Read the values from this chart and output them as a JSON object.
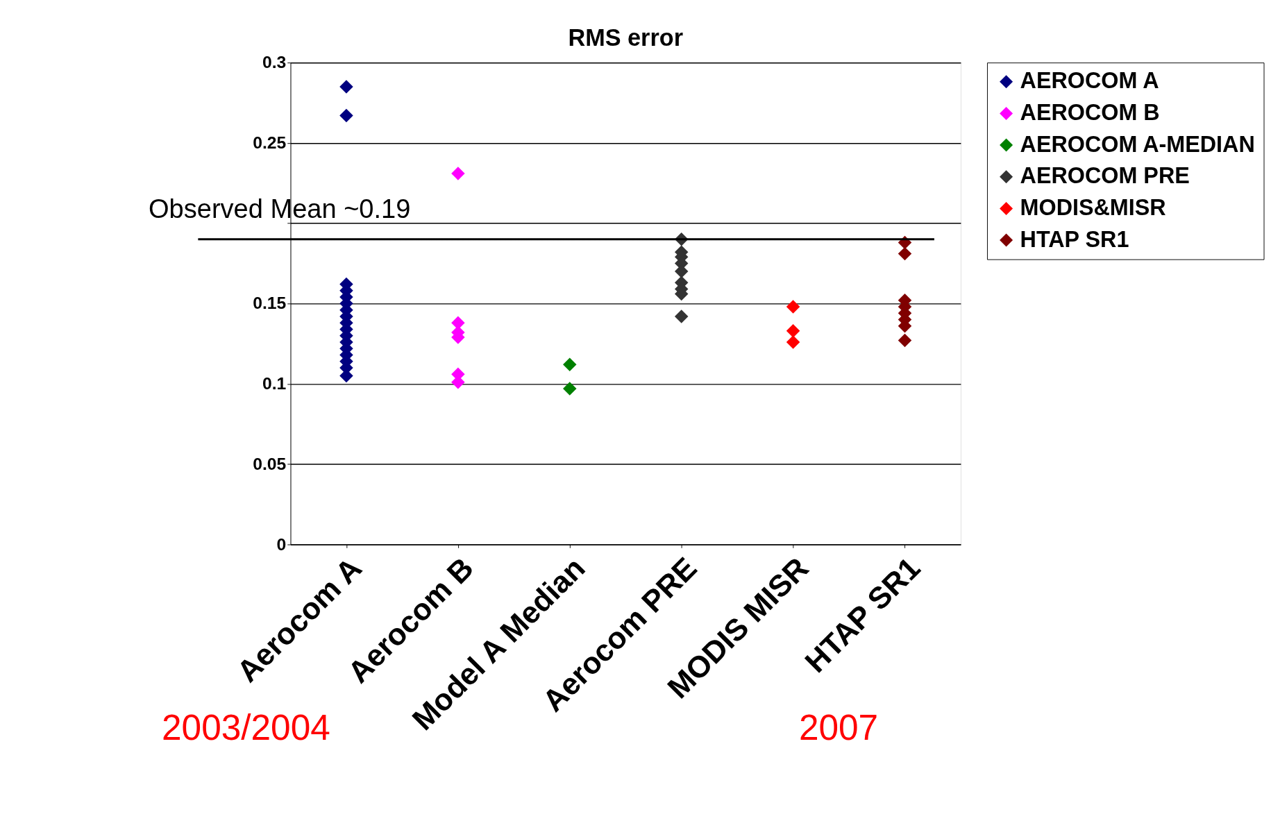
{
  "chart_data": {
    "type": "scatter",
    "title": "RMS error",
    "categories": [
      "Aerocom A",
      "Aerocom B",
      "Model A Median",
      "Aerocom PRE",
      "MODIS MISR",
      "HTAP SR1"
    ],
    "series": [
      {
        "name": "AEROCOM A",
        "color": "#000080",
        "x": [
          "Aerocom A",
          "Aerocom A",
          "Aerocom A",
          "Aerocom A",
          "Aerocom A",
          "Aerocom A",
          "Aerocom A",
          "Aerocom A",
          "Aerocom A",
          "Aerocom A",
          "Aerocom A",
          "Aerocom A",
          "Aerocom A",
          "Aerocom A",
          "Aerocom A",
          "Aerocom A",
          "Aerocom A"
        ],
        "values": [
          0.285,
          0.267,
          0.162,
          0.158,
          0.154,
          0.15,
          0.146,
          0.142,
          0.138,
          0.134,
          0.13,
          0.126,
          0.122,
          0.118,
          0.114,
          0.11,
          0.105
        ]
      },
      {
        "name": "AEROCOM B",
        "color": "#ff00ff",
        "x": [
          "Aerocom B",
          "Aerocom B",
          "Aerocom B",
          "Aerocom B",
          "Aerocom B",
          "Aerocom B"
        ],
        "values": [
          0.231,
          0.138,
          0.132,
          0.129,
          0.106,
          0.101
        ]
      },
      {
        "name": "AEROCOM A-MEDIAN",
        "color": "#008000",
        "x": [
          "Model A Median",
          "Model A Median"
        ],
        "values": [
          0.112,
          0.097
        ]
      },
      {
        "name": "AEROCOM PRE",
        "color": "#333333",
        "x": [
          "Aerocom PRE",
          "Aerocom PRE",
          "Aerocom PRE",
          "Aerocom PRE",
          "Aerocom PRE",
          "Aerocom PRE",
          "Aerocom PRE",
          "Aerocom PRE",
          "Aerocom PRE"
        ],
        "values": [
          0.19,
          0.182,
          0.179,
          0.175,
          0.17,
          0.163,
          0.159,
          0.156,
          0.142
        ]
      },
      {
        "name": "MODIS&MISR",
        "color": "#ff0000",
        "x": [
          "MODIS MISR",
          "MODIS MISR",
          "MODIS MISR"
        ],
        "values": [
          0.148,
          0.133,
          0.126
        ]
      },
      {
        "name": "HTAP SR1",
        "color": "#800000",
        "x": [
          "HTAP SR1",
          "HTAP SR1",
          "HTAP SR1",
          "HTAP SR1",
          "HTAP SR1",
          "HTAP SR1",
          "HTAP SR1",
          "HTAP SR1"
        ],
        "values": [
          0.188,
          0.181,
          0.152,
          0.148,
          0.144,
          0.14,
          0.136,
          0.127
        ]
      }
    ],
    "ylim": [
      0,
      0.3
    ],
    "yticks": [
      0,
      0.05,
      0.1,
      0.15,
      {
        "value": 0.2,
        "label": null
      },
      0.25,
      0.3
    ],
    "grid": "y",
    "marker": "diamond",
    "legend": "top right",
    "ref_lines": [
      {
        "axis": "y",
        "value": 0.19,
        "label": "Observed Mean ~0.19",
        "color": "#000000"
      }
    ],
    "annotations": [
      "2003/2004",
      "2007"
    ]
  }
}
